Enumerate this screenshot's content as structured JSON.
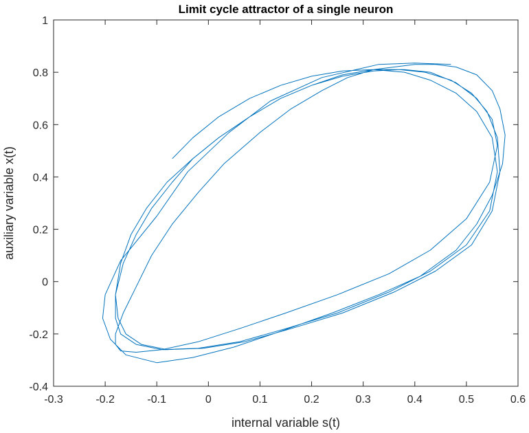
{
  "chart_data": {
    "type": "line",
    "title": "Limit cycle attractor of a single neuron",
    "xlabel": "internal variable s(t)",
    "ylabel": "auxiliary variable x(t)",
    "xlim": [
      -0.3,
      0.6
    ],
    "ylim": [
      -0.4,
      1.0
    ],
    "xticks": [
      "-0.3",
      "-0.2",
      "-0.1",
      "0",
      "0.1",
      "0.2",
      "0.3",
      "0.4",
      "0.5",
      "0.6"
    ],
    "yticks": [
      "-0.4",
      "-0.2",
      "0",
      "0.2",
      "0.4",
      "0.6",
      "0.8",
      "1"
    ],
    "grid": false,
    "line_color": "#0072BD",
    "series": [
      {
        "x": [
          0.47,
          0.4,
          0.33,
          0.22,
          0.12,
          0.04,
          -0.04,
          -0.1,
          -0.17,
          -0.2,
          -0.205,
          -0.19,
          -0.16,
          -0.1,
          -0.03,
          0.05,
          0.14,
          0.24,
          0.33,
          0.41,
          0.48,
          0.52,
          0.55,
          0.57,
          0.575,
          0.565,
          0.55,
          0.52,
          0.48,
          0.44,
          0.4,
          0.36,
          0.32,
          0.27,
          0.22,
          0.16,
          0.1,
          0.03,
          -0.02,
          -0.07,
          -0.11,
          -0.14,
          -0.165,
          -0.18,
          -0.18,
          -0.17,
          -0.14,
          -0.09,
          -0.02,
          0.06,
          0.15,
          0.25,
          0.35,
          0.43,
          0.5,
          0.545,
          0.56,
          0.55,
          0.52,
          0.48,
          0.43,
          0.38,
          0.32,
          0.26,
          0.2,
          0.14,
          0.08,
          0.02,
          -0.03,
          -0.08,
          -0.12,
          -0.15,
          -0.17,
          -0.18,
          -0.175,
          -0.16,
          -0.13,
          -0.08,
          -0.01,
          0.07,
          0.16,
          0.26,
          0.36,
          0.44,
          0.51,
          0.55,
          0.565,
          0.56,
          0.54,
          0.51,
          0.47,
          0.42,
          0.37,
          0.32,
          0.26,
          0.2,
          0.14,
          0.08,
          0.02,
          -0.03,
          -0.07,
          -0.11,
          -0.14,
          -0.165,
          -0.18,
          -0.18,
          -0.17,
          -0.14,
          -0.09,
          -0.02,
          0.06,
          0.15,
          0.25,
          0.35,
          0.43,
          0.5,
          0.545,
          0.56,
          0.55,
          0.52,
          0.48,
          0.43,
          0.38,
          0.32,
          0.26,
          0.2,
          0.14,
          0.08,
          0.02,
          -0.03,
          -0.07
        ],
        "y": [
          0.83,
          0.835,
          0.83,
          0.78,
          0.69,
          0.57,
          0.42,
          0.25,
          0.08,
          -0.05,
          -0.14,
          -0.22,
          -0.28,
          -0.31,
          -0.29,
          -0.25,
          -0.19,
          -0.12,
          -0.05,
          0.02,
          0.12,
          0.22,
          0.33,
          0.45,
          0.56,
          0.66,
          0.73,
          0.79,
          0.82,
          0.83,
          0.83,
          0.82,
          0.81,
          0.78,
          0.73,
          0.66,
          0.57,
          0.45,
          0.34,
          0.22,
          0.1,
          -0.02,
          -0.12,
          -0.2,
          -0.24,
          -0.265,
          -0.27,
          -0.26,
          -0.23,
          -0.18,
          -0.12,
          -0.05,
          0.03,
          0.12,
          0.24,
          0.38,
          0.52,
          0.62,
          0.7,
          0.76,
          0.8,
          0.81,
          0.81,
          0.79,
          0.75,
          0.7,
          0.63,
          0.55,
          0.47,
          0.38,
          0.28,
          0.18,
          0.07,
          -0.05,
          -0.14,
          -0.2,
          -0.24,
          -0.26,
          -0.255,
          -0.23,
          -0.18,
          -0.12,
          -0.04,
          0.04,
          0.14,
          0.27,
          0.42,
          0.55,
          0.65,
          0.72,
          0.77,
          0.8,
          0.81,
          0.805,
          0.785,
          0.75,
          0.7,
          0.63,
          0.55,
          0.47,
          0.38,
          0.28,
          0.18,
          0.07,
          -0.05,
          -0.14,
          -0.2,
          -0.24,
          -0.26,
          -0.255,
          -0.23,
          -0.18,
          -0.12,
          -0.04,
          0.04,
          0.14,
          0.27,
          0.42,
          0.55,
          0.65,
          0.72,
          0.77,
          0.8,
          0.81,
          0.805,
          0.785,
          0.75,
          0.7,
          0.63,
          0.55,
          0.47
        ]
      }
    ]
  }
}
